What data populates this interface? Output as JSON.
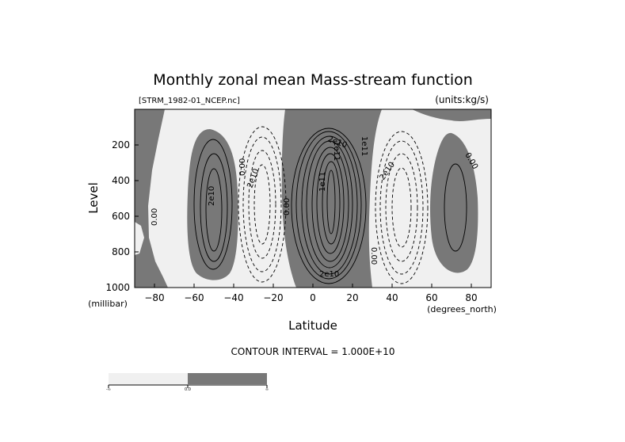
{
  "chart_data": {
    "type": "contour",
    "title": "Monthly zonal mean Mass-stream function",
    "source_file": "[STRM_1982-01_NCEP.nc]",
    "units_note": "(units:kg/s)",
    "xlabel": "Latitude",
    "ylabel": "Level",
    "x_units": "(degrees_north)",
    "y_units": "(millibar)",
    "xlim": [
      -90,
      90
    ],
    "ylim": [
      1000,
      0
    ],
    "x_ticks": [
      -80,
      -60,
      -40,
      -20,
      0,
      20,
      40,
      60,
      80
    ],
    "x_tick_labels": [
      "−80",
      "−60",
      "−40",
      "−20",
      "0",
      "20",
      "40",
      "60",
      "80"
    ],
    "y_ticks": [
      200,
      400,
      600,
      800,
      1000
    ],
    "y_tick_labels": [
      "200",
      "400",
      "600",
      "800",
      "1000"
    ],
    "contour_interval_text": "CONTOUR INTERVAL = 1.000E+10",
    "shading": {
      "negative_color": "#f0f0f0",
      "positive_color": "#787878",
      "threshold": 0.0,
      "colorbar_labels": [
        "-∞",
        "0.0",
        "∞"
      ]
    },
    "contour_labels": [
      "0.00",
      "0.00",
      "0.00",
      "0.00",
      "0.00",
      "2e10",
      "2e10",
      "2e10",
      "1e11",
      "1e11",
      "1e11",
      "2e10",
      "2e10"
    ],
    "cells": [
      {
        "type": "positive",
        "center_lat": -48,
        "center_level": 560,
        "peak": 60000000000.0
      },
      {
        "type": "negative",
        "center_lat": -25,
        "center_level": 560,
        "peak": -50000000000.0
      },
      {
        "type": "positive",
        "center_lat": 10,
        "center_level": 500,
        "peak": 170000000000.0
      },
      {
        "type": "negative",
        "center_lat": 43,
        "center_level": 560,
        "peak": -60000000000.0
      },
      {
        "type": "positive",
        "center_lat": 68,
        "center_level": 620,
        "peak": 30000000000.0
      }
    ]
  }
}
